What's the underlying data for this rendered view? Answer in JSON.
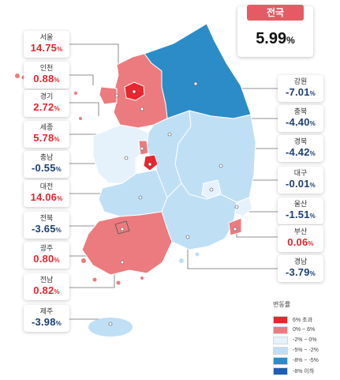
{
  "national": {
    "label": "전국",
    "value": "5.99",
    "unit": "%"
  },
  "colors": {
    "up_text": "#e1252f",
    "down_text": "#1d3f73",
    "bin_over6": "#e7262e",
    "bin_0_6": "#eb7b7e",
    "bin_m2_0": "#e6f2fb",
    "bin_m5_m2": "#bfdff5",
    "bin_m8_m5": "#2b8cc8",
    "bin_under_m8": "#1f5fb4"
  },
  "legend": {
    "title": "변동률",
    "items": [
      {
        "label": "6% 초과",
        "color": "#e7262e"
      },
      {
        "label": "0% ~ 6%",
        "color": "#eb7b7e"
      },
      {
        "label": "-2% ~ 0%",
        "color": "#e6f2fb"
      },
      {
        "label": "-5% ~ -2%",
        "color": "#bfdff5"
      },
      {
        "label": "-8% ~ -5%",
        "color": "#2b8cc8"
      },
      {
        "label": "-8% 이하",
        "color": "#1f5fb4"
      }
    ]
  },
  "regions": [
    {
      "id": "seoul",
      "name": "서울",
      "value": "14.75",
      "unit": "%",
      "dir": "up"
    },
    {
      "id": "incheon",
      "name": "인천",
      "value": "0.88",
      "unit": "%",
      "dir": "up"
    },
    {
      "id": "gyeonggi",
      "name": "경기",
      "value": "2.72",
      "unit": "%",
      "dir": "up"
    },
    {
      "id": "sejong",
      "name": "세종",
      "value": "5.78",
      "unit": "%",
      "dir": "up"
    },
    {
      "id": "chungnam",
      "name": "충남",
      "value": "-0.55",
      "unit": "%",
      "dir": "down"
    },
    {
      "id": "daejeon",
      "name": "대전",
      "value": "14.06",
      "unit": "%",
      "dir": "up"
    },
    {
      "id": "jeonbuk",
      "name": "전북",
      "value": "-3.65",
      "unit": "%",
      "dir": "down"
    },
    {
      "id": "gwangju",
      "name": "광주",
      "value": "0.80",
      "unit": "%",
      "dir": "up"
    },
    {
      "id": "jeonnam",
      "name": "전남",
      "value": "0.82",
      "unit": "%",
      "dir": "up"
    },
    {
      "id": "jeju",
      "name": "제주",
      "value": "-3.98",
      "unit": "%",
      "dir": "down"
    },
    {
      "id": "gangwon",
      "name": "강원",
      "value": "-7.01",
      "unit": "%",
      "dir": "down"
    },
    {
      "id": "chungbuk",
      "name": "충북",
      "value": "-4.40",
      "unit": "%",
      "dir": "down"
    },
    {
      "id": "gyeongbuk",
      "name": "경북",
      "value": "-4.42",
      "unit": "%",
      "dir": "down"
    },
    {
      "id": "daegu",
      "name": "대구",
      "value": "-0.01",
      "unit": "%",
      "dir": "down"
    },
    {
      "id": "ulsan",
      "name": "울산",
      "value": "-1.51",
      "unit": "%",
      "dir": "down"
    },
    {
      "id": "busan",
      "name": "부산",
      "value": "0.06",
      "unit": "%",
      "dir": "up"
    },
    {
      "id": "gyeongnam",
      "name": "경남",
      "value": "-3.79",
      "unit": "%",
      "dir": "down"
    }
  ]
}
